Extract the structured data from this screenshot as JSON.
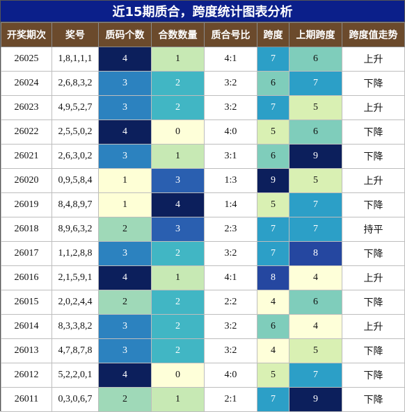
{
  "title": "近15期质合，跨度统计图表分析",
  "chart_data": {
    "type": "table",
    "columns": [
      "开奖期次",
      "奖号",
      "质码个数",
      "合数数量",
      "质合号比",
      "跨度",
      "上期跨度",
      "跨度值走势"
    ],
    "rows": [
      {
        "issue": "26025",
        "numbers": "1,8,1,1,1",
        "prime_count": 4,
        "composite_count": 1,
        "ratio": "4:1",
        "span": 7,
        "prev_span": 6,
        "trend": "上升"
      },
      {
        "issue": "26024",
        "numbers": "2,6,8,3,2",
        "prime_count": 3,
        "composite_count": 2,
        "ratio": "3:2",
        "span": 6,
        "prev_span": 7,
        "trend": "下降"
      },
      {
        "issue": "26023",
        "numbers": "4,9,5,2,7",
        "prime_count": 3,
        "composite_count": 2,
        "ratio": "3:2",
        "span": 7,
        "prev_span": 5,
        "trend": "上升"
      },
      {
        "issue": "26022",
        "numbers": "2,5,5,0,2",
        "prime_count": 4,
        "composite_count": 0,
        "ratio": "4:0",
        "span": 5,
        "prev_span": 6,
        "trend": "下降"
      },
      {
        "issue": "26021",
        "numbers": "2,6,3,0,2",
        "prime_count": 3,
        "composite_count": 1,
        "ratio": "3:1",
        "span": 6,
        "prev_span": 9,
        "trend": "下降"
      },
      {
        "issue": "26020",
        "numbers": "0,9,5,8,4",
        "prime_count": 1,
        "composite_count": 3,
        "ratio": "1:3",
        "span": 9,
        "prev_span": 5,
        "trend": "上升"
      },
      {
        "issue": "26019",
        "numbers": "8,4,8,9,7",
        "prime_count": 1,
        "composite_count": 4,
        "ratio": "1:4",
        "span": 5,
        "prev_span": 7,
        "trend": "下降"
      },
      {
        "issue": "26018",
        "numbers": "8,9,6,3,2",
        "prime_count": 2,
        "composite_count": 3,
        "ratio": "2:3",
        "span": 7,
        "prev_span": 7,
        "trend": "持平"
      },
      {
        "issue": "26017",
        "numbers": "1,1,2,8,8",
        "prime_count": 3,
        "composite_count": 2,
        "ratio": "3:2",
        "span": 7,
        "prev_span": 8,
        "trend": "下降"
      },
      {
        "issue": "26016",
        "numbers": "2,1,5,9,1",
        "prime_count": 4,
        "composite_count": 1,
        "ratio": "4:1",
        "span": 8,
        "prev_span": 4,
        "trend": "上升"
      },
      {
        "issue": "26015",
        "numbers": "2,0,2,4,4",
        "prime_count": 2,
        "composite_count": 2,
        "ratio": "2:2",
        "span": 4,
        "prev_span": 6,
        "trend": "下降"
      },
      {
        "issue": "26014",
        "numbers": "8,3,3,8,2",
        "prime_count": 3,
        "composite_count": 2,
        "ratio": "3:2",
        "span": 6,
        "prev_span": 4,
        "trend": "上升"
      },
      {
        "issue": "26013",
        "numbers": "4,7,8,7,8",
        "prime_count": 3,
        "composite_count": 2,
        "ratio": "3:2",
        "span": 4,
        "prev_span": 5,
        "trend": "下降"
      },
      {
        "issue": "26012",
        "numbers": "5,2,2,0,1",
        "prime_count": 4,
        "composite_count": 0,
        "ratio": "4:0",
        "span": 5,
        "prev_span": 7,
        "trend": "下降"
      },
      {
        "issue": "26011",
        "numbers": "0,3,0,6,7",
        "prime_count": 2,
        "composite_count": 1,
        "ratio": "2:1",
        "span": 7,
        "prev_span": 9,
        "trend": "下降"
      }
    ]
  }
}
